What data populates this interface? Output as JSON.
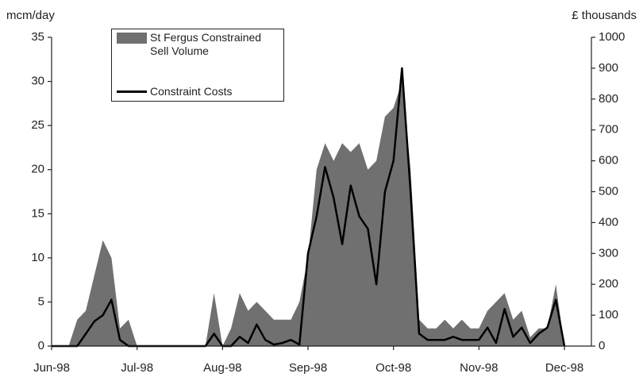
{
  "chart_data": {
    "type": "area-line",
    "ylabel": "mcm/day",
    "y2label": "£ thousands",
    "categories": [
      "Jun-98",
      null,
      null,
      null,
      null,
      null,
      null,
      null,
      null,
      null,
      "Jul-98",
      null,
      null,
      null,
      null,
      null,
      null,
      null,
      null,
      null,
      "Aug-98",
      null,
      null,
      null,
      null,
      null,
      null,
      null,
      null,
      null,
      "Sep-98",
      null,
      null,
      null,
      null,
      null,
      null,
      null,
      null,
      null,
      "Oct-98",
      null,
      null,
      null,
      null,
      null,
      null,
      null,
      null,
      null,
      "Nov-98",
      null,
      null,
      null,
      null,
      null,
      null,
      null,
      null,
      null,
      "Dec-98"
    ],
    "series": [
      {
        "name": "St Fergus Constrained Sell Volume",
        "type": "area",
        "color": "#707070",
        "values": [
          0,
          0,
          0,
          3,
          4,
          8,
          12,
          10,
          2,
          3,
          0,
          0,
          0,
          0,
          0,
          0,
          0,
          0,
          0,
          6,
          0,
          2,
          6,
          4,
          5,
          4,
          3,
          3,
          3,
          5,
          10,
          20,
          23,
          21,
          23,
          22,
          23,
          20,
          21,
          26,
          27,
          30,
          20,
          3,
          2,
          2,
          3,
          2,
          3,
          2,
          2,
          4,
          5,
          6,
          3,
          4,
          1,
          2,
          2,
          7,
          0
        ]
      },
      {
        "name": "Constraint Costs",
        "type": "line",
        "axis": "y2",
        "color": "#000000",
        "values": [
          0,
          0,
          0,
          0,
          40,
          80,
          100,
          150,
          20,
          0,
          0,
          0,
          0,
          0,
          0,
          0,
          0,
          0,
          0,
          40,
          0,
          0,
          30,
          10,
          70,
          20,
          5,
          10,
          20,
          5,
          300,
          420,
          580,
          480,
          330,
          520,
          420,
          380,
          200,
          500,
          600,
          900,
          500,
          40,
          20,
          20,
          20,
          30,
          20,
          20,
          20,
          60,
          10,
          120,
          30,
          60,
          10,
          40,
          60,
          150,
          0
        ]
      }
    ],
    "ylim": [
      0,
      35
    ],
    "yticks": [
      0,
      5,
      10,
      15,
      20,
      25,
      30,
      35
    ],
    "y2lim": [
      0,
      1000
    ],
    "y2ticks": [
      0,
      100,
      200,
      300,
      400,
      500,
      600,
      700,
      800,
      900,
      1000
    ]
  }
}
